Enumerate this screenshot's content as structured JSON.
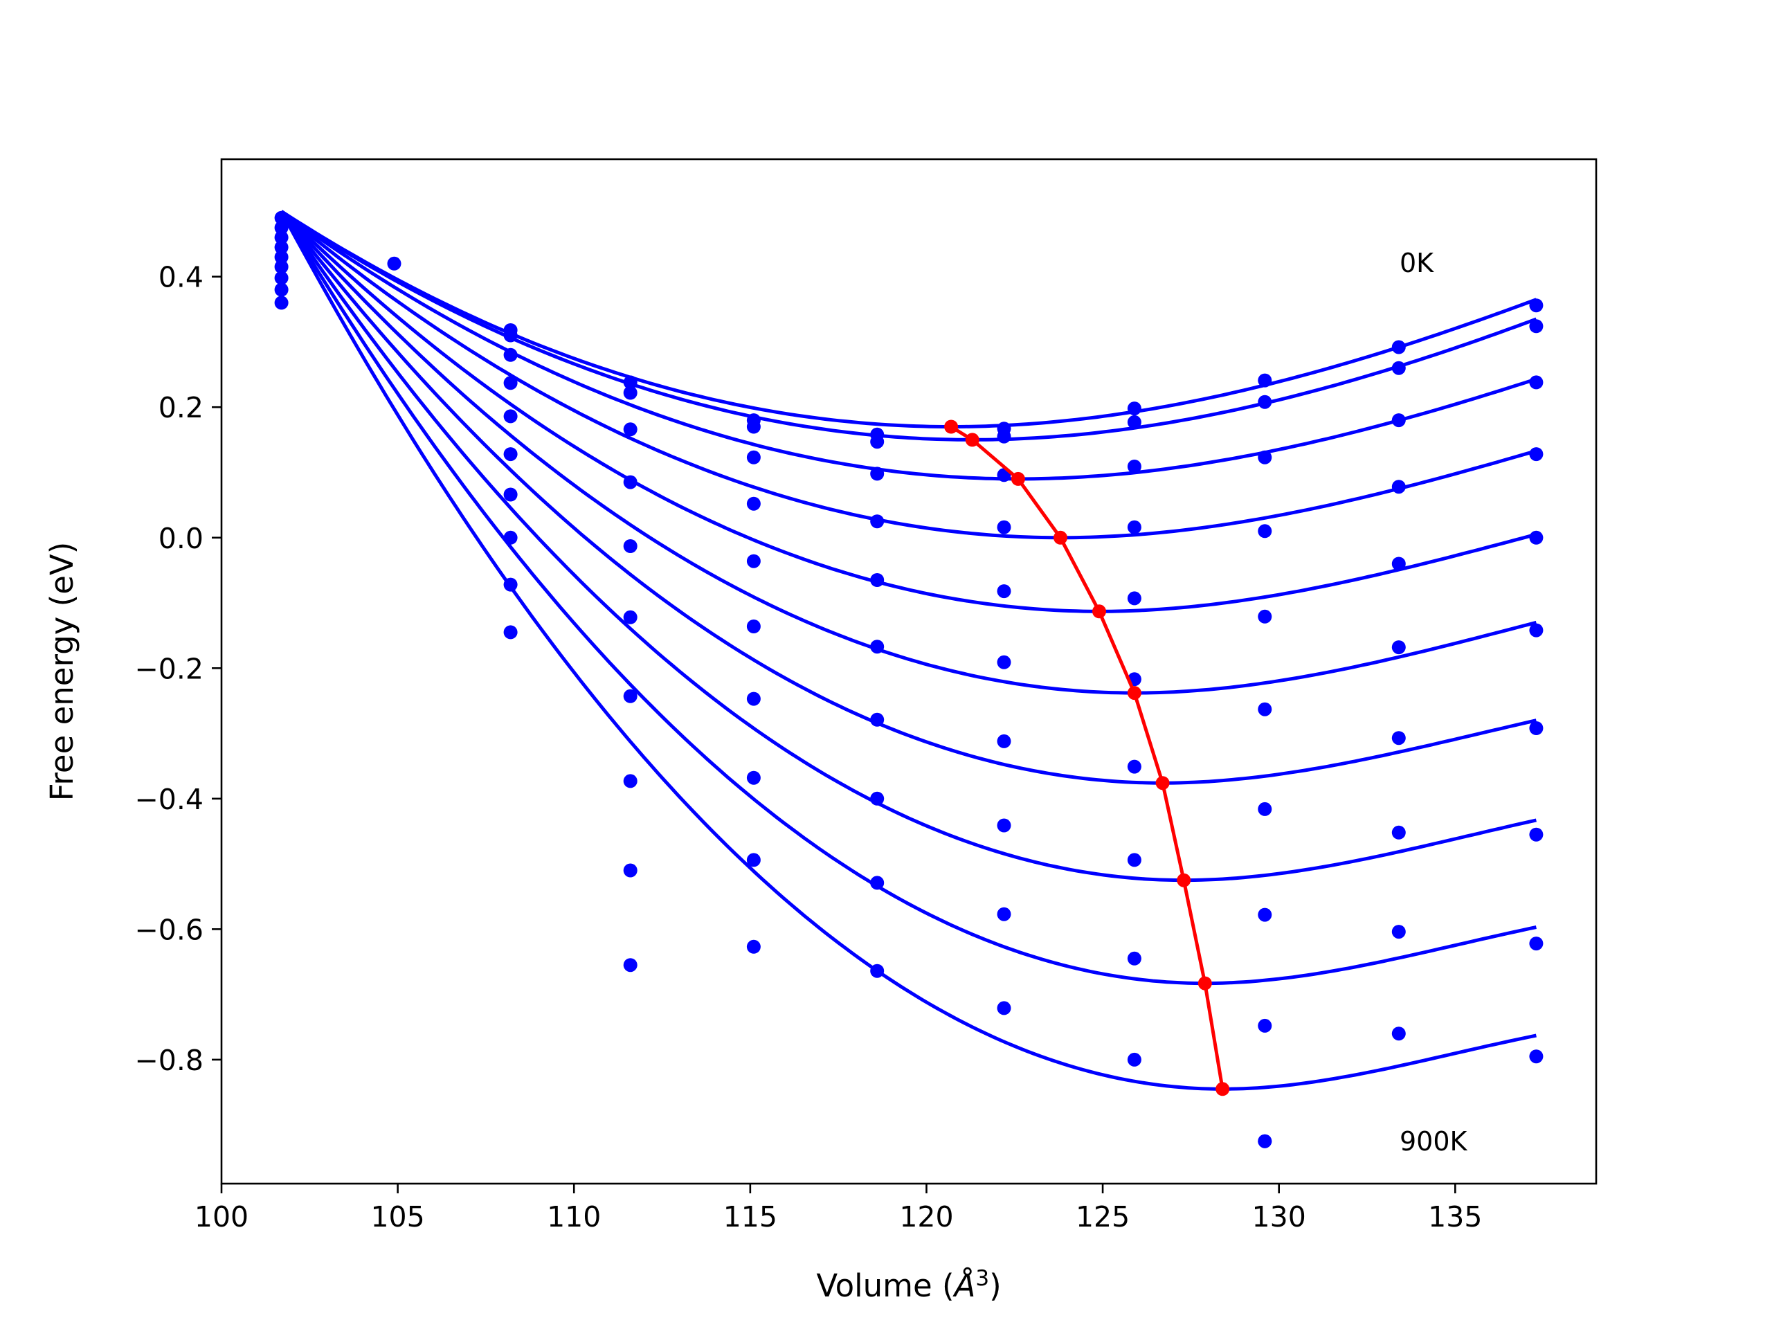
{
  "colors": {
    "curves": "#0000ff",
    "minima": "#ff0000",
    "frame": "#000000",
    "background": "#ffffff"
  },
  "chart_data": {
    "type": "line",
    "title": "",
    "xlabel": "Volume (",
    "xlabel_unit_base": "Å",
    "xlabel_unit_exp": "3",
    "xlabel_close": ")",
    "ylabel": "Free energy (eV)",
    "xlim": [
      100,
      139
    ],
    "ylim": [
      -0.99,
      0.58
    ],
    "x_ticks": [
      100,
      105,
      110,
      115,
      120,
      125,
      130,
      135
    ],
    "x_tick_labels": [
      "100",
      "105",
      "110",
      "115",
      "120",
      "125",
      "130",
      "135"
    ],
    "y_ticks": [
      0.4,
      0.2,
      0.0,
      -0.2,
      -0.4,
      -0.6,
      -0.8
    ],
    "y_tick_labels": [
      "0.4",
      "0.2",
      "0.0",
      "−0.2",
      "−0.4",
      "−0.6",
      "−0.8"
    ],
    "grid": false,
    "annotations": [
      {
        "text": "0K",
        "x": 133.6,
        "y": 0.41
      },
      {
        "text": "900K",
        "x": 133.6,
        "y": -0.95
      }
    ],
    "fit_curves": {
      "x_start": 101.7,
      "x_end": 137.3,
      "y_start": 0.5,
      "curves": [
        {
          "min_x": 120.7,
          "min_y": 0.17,
          "end_y": 0.365
        },
        {
          "min_x": 121.3,
          "min_y": 0.15,
          "end_y": 0.335
        },
        {
          "min_x": 122.6,
          "min_y": 0.09,
          "end_y": 0.243
        },
        {
          "min_x": 123.8,
          "min_y": 0.0,
          "end_y": 0.133
        },
        {
          "min_x": 124.9,
          "min_y": -0.113,
          "end_y": 0.005
        },
        {
          "min_x": 125.9,
          "min_y": -0.238,
          "end_y": -0.13
        },
        {
          "min_x": 126.7,
          "min_y": -0.376,
          "end_y": -0.28
        },
        {
          "min_x": 127.3,
          "min_y": -0.525,
          "end_y": -0.433
        },
        {
          "min_x": 127.9,
          "min_y": -0.683,
          "end_y": -0.597
        },
        {
          "min_x": 128.4,
          "min_y": -0.845,
          "end_y": -0.763
        }
      ]
    },
    "data_points": [
      [
        101.7,
        0.49
      ],
      [
        101.7,
        0.475
      ],
      [
        101.7,
        0.46
      ],
      [
        101.7,
        0.445
      ],
      [
        101.7,
        0.43
      ],
      [
        101.7,
        0.415
      ],
      [
        101.7,
        0.398
      ],
      [
        101.7,
        0.38
      ],
      [
        101.7,
        0.36
      ],
      [
        104.9,
        0.42
      ],
      [
        108.2,
        0.318
      ],
      [
        108.2,
        0.31
      ],
      [
        108.2,
        0.28
      ],
      [
        108.2,
        0.237
      ],
      [
        108.2,
        0.186
      ],
      [
        108.2,
        0.128
      ],
      [
        108.2,
        0.066
      ],
      [
        108.2,
        0.0
      ],
      [
        108.2,
        -0.072
      ],
      [
        108.2,
        -0.145
      ],
      [
        111.6,
        0.238
      ],
      [
        111.6,
        0.222
      ],
      [
        111.6,
        0.166
      ],
      [
        111.6,
        0.085
      ],
      [
        111.6,
        -0.013
      ],
      [
        111.6,
        -0.122
      ],
      [
        111.6,
        -0.243
      ],
      [
        111.6,
        -0.373
      ],
      [
        111.6,
        -0.51
      ],
      [
        111.6,
        -0.655
      ],
      [
        115.1,
        0.18
      ],
      [
        115.1,
        0.17
      ],
      [
        115.1,
        0.123
      ],
      [
        115.1,
        0.052
      ],
      [
        115.1,
        -0.036
      ],
      [
        115.1,
        -0.136
      ],
      [
        115.1,
        -0.247
      ],
      [
        115.1,
        -0.368
      ],
      [
        115.1,
        -0.494
      ],
      [
        115.1,
        -0.627
      ],
      [
        118.6,
        0.158
      ],
      [
        118.6,
        0.147
      ],
      [
        118.6,
        0.098
      ],
      [
        118.6,
        0.025
      ],
      [
        118.6,
        -0.065
      ],
      [
        118.6,
        -0.167
      ],
      [
        118.6,
        -0.279
      ],
      [
        118.6,
        -0.4
      ],
      [
        118.6,
        -0.529
      ],
      [
        118.6,
        -0.664
      ],
      [
        122.2,
        0.167
      ],
      [
        122.2,
        0.155
      ],
      [
        122.2,
        0.096
      ],
      [
        122.2,
        0.016
      ],
      [
        122.2,
        -0.082
      ],
      [
        122.2,
        -0.191
      ],
      [
        122.2,
        -0.312
      ],
      [
        122.2,
        -0.441
      ],
      [
        122.2,
        -0.577
      ],
      [
        122.2,
        -0.721
      ],
      [
        125.9,
        0.198
      ],
      [
        125.9,
        0.177
      ],
      [
        125.9,
        0.109
      ],
      [
        125.9,
        0.016
      ],
      [
        125.9,
        -0.093
      ],
      [
        125.9,
        -0.217
      ],
      [
        125.9,
        -0.351
      ],
      [
        125.9,
        -0.494
      ],
      [
        125.9,
        -0.645
      ],
      [
        125.9,
        -0.8
      ],
      [
        129.6,
        0.241
      ],
      [
        129.6,
        0.208
      ],
      [
        129.6,
        0.123
      ],
      [
        129.6,
        0.01
      ],
      [
        129.6,
        -0.121
      ],
      [
        129.6,
        -0.263
      ],
      [
        129.6,
        -0.416
      ],
      [
        129.6,
        -0.578
      ],
      [
        129.6,
        -0.748
      ],
      [
        129.6,
        -0.925
      ],
      [
        133.4,
        0.292
      ],
      [
        133.4,
        0.26
      ],
      [
        133.4,
        0.18
      ],
      [
        133.4,
        0.078
      ],
      [
        133.4,
        -0.04
      ],
      [
        133.4,
        -0.168
      ],
      [
        133.4,
        -0.307
      ],
      [
        133.4,
        -0.452
      ],
      [
        133.4,
        -0.604
      ],
      [
        133.4,
        -0.76
      ],
      [
        137.3,
        0.356
      ],
      [
        137.3,
        0.324
      ],
      [
        137.3,
        0.238
      ],
      [
        137.3,
        0.128
      ],
      [
        137.3,
        0.0
      ],
      [
        137.3,
        -0.142
      ],
      [
        137.3,
        -0.292
      ],
      [
        137.3,
        -0.455
      ],
      [
        137.3,
        -0.622
      ],
      [
        137.3,
        -0.795
      ]
    ]
  }
}
